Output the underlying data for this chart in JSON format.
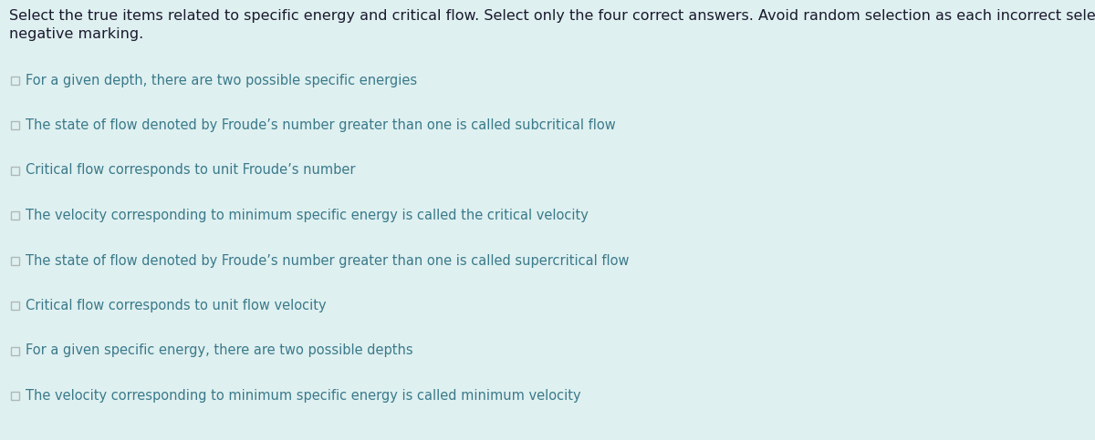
{
  "background_color": "#dff0f0",
  "instruction_line1": "Select the true items related to specific energy and critical flow. Select only the four correct answers. Avoid random selection as each incorrect selection will be penalised by imposing",
  "instruction_line2": "negative marking.",
  "instruction_color": "#1a1a2e",
  "instruction_fontsize": 11.5,
  "items": [
    "For a given depth, there are two possible specific energies",
    "The state of flow denoted by Froude’s number greater than one is called subcritical flow",
    "Critical flow corresponds to unit Froude’s number",
    "The velocity corresponding to minimum specific energy is called the critical velocity",
    "The state of flow denoted by Froude’s number greater than one is called supercritical flow",
    "Critical flow corresponds to unit flow velocity",
    "For a given specific energy, there are two possible depths",
    "The velocity corresponding to minimum specific energy is called minimum velocity"
  ],
  "item_color": "#3a7a8a",
  "item_fontsize": 10.5,
  "checkbox_edge_color": "#b0b8b8",
  "checkbox_face_color": "#dff0f0",
  "fig_width": 12.0,
  "fig_height": 4.83,
  "dpi": 100
}
